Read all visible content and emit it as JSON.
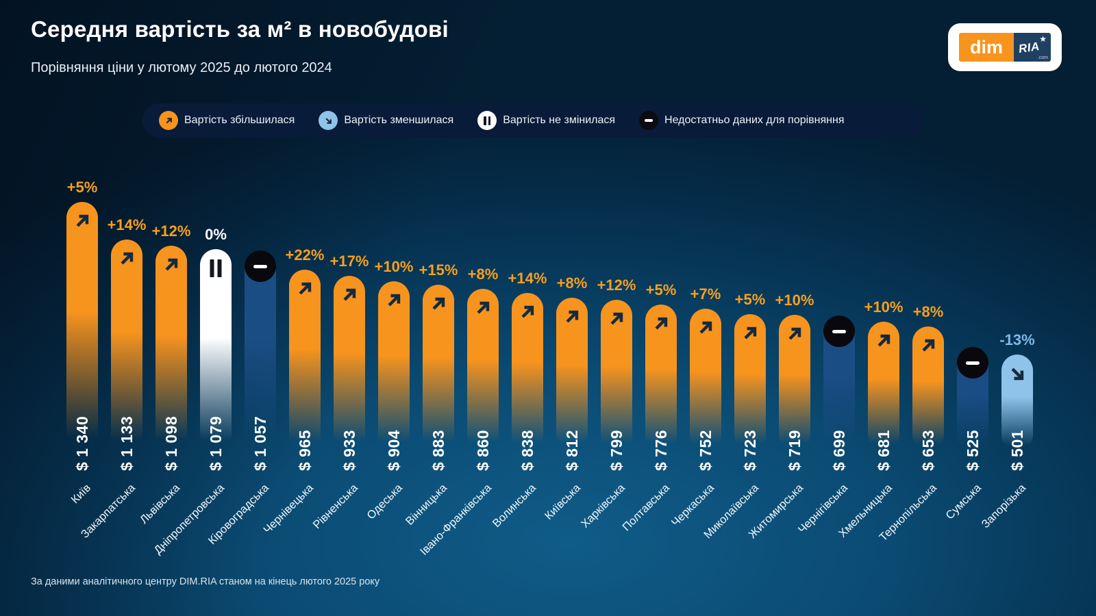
{
  "title": "Середня вартість за м² в новобудові",
  "subtitle": "Порівняння ціни у лютому 2025 до лютого 2024",
  "footer": "За даними аналітичного центру DIM.RIA станом на кінець лютого 2025 року",
  "logo": {
    "dim": "dim",
    "ria": "RIA",
    "star": "★",
    "tld": ".com"
  },
  "legend": {
    "items": [
      {
        "icon": "trend-up-icon",
        "label": "Вартість збільшилася",
        "circle_color": "#F7941E",
        "glyph_color": "#16293F"
      },
      {
        "icon": "trend-down-icon",
        "label": "Вартість зменшилася",
        "circle_color": "#8FC3EA",
        "glyph_color": "#16293F"
      },
      {
        "icon": "pause-icon",
        "label": "Вартість не змінилася",
        "circle_color": "#FFFFFF",
        "glyph_color": "#16293F"
      },
      {
        "icon": "minus-icon",
        "label": "Недостатньо даних для порівняння",
        "circle_color": "#0B0B10",
        "glyph_color": "#FFFFFF"
      }
    ]
  },
  "colors": {
    "bar_increase": "#F7941E",
    "bar_decrease": "#8FC3EA",
    "bar_unchanged": "#FFFFFF",
    "bar_no_data": "#1B4D85",
    "pct_increase": "#F9A01B",
    "pct_decrease": "#7FB9E6",
    "pct_unchanged": "#FFFFFF",
    "glyph_dark": "#16293F",
    "badge_black": "#08080D"
  },
  "chart_data": {
    "type": "bar",
    "title": "Середня вартість за м² в новобудові",
    "subtitle": "Порівняння ціни у лютому 2025 до лютого 2024",
    "unit": "USD за м²",
    "legend_position": "top",
    "grid": false,
    "ylim": [
      0,
      1400
    ],
    "categories": [
      "Київ",
      "Закарпатська",
      "Львівська",
      "Дніпропетровська",
      "Кіровоградська",
      "Чернівецька",
      "Рівненська",
      "Одеська",
      "Вінницька",
      "Івано-Франківська",
      "Волинська",
      "Київська",
      "Харківська",
      "Полтавська",
      "Черкаська",
      "Миколаївська",
      "Житомирська",
      "Чернігівська",
      "Хмельницька",
      "Тернопільська",
      "Сумська",
      "Запорізька"
    ],
    "values": [
      1340,
      1133,
      1098,
      1079,
      1057,
      965,
      933,
      904,
      883,
      860,
      838,
      812,
      799,
      776,
      752,
      723,
      719,
      699,
      681,
      653,
      525,
      501
    ],
    "value_labels": [
      "$ 1 340",
      "$ 1 133",
      "$ 1 098",
      "$ 1 079",
      "$ 1 057",
      "$ 965",
      "$ 933",
      "$ 904",
      "$ 883",
      "$ 860",
      "$ 838",
      "$ 812",
      "$ 799",
      "$ 776",
      "$ 752",
      "$ 723",
      "$ 719",
      "$ 699",
      "$ 681",
      "$ 653",
      "$ 525",
      "$ 501"
    ],
    "change": [
      "+5%",
      "+14%",
      "+12%",
      "0%",
      null,
      "+22%",
      "+17%",
      "+10%",
      "+15%",
      "+8%",
      "+14%",
      "+8%",
      "+12%",
      "+5%",
      "+7%",
      "+5%",
      "+10%",
      null,
      "+10%",
      "+8%",
      null,
      "-13%"
    ],
    "status": [
      "increase",
      "increase",
      "increase",
      "unchanged",
      "no_data",
      "increase",
      "increase",
      "increase",
      "increase",
      "increase",
      "increase",
      "increase",
      "increase",
      "increase",
      "increase",
      "increase",
      "increase",
      "no_data",
      "increase",
      "increase",
      "no_data",
      "decrease"
    ]
  }
}
